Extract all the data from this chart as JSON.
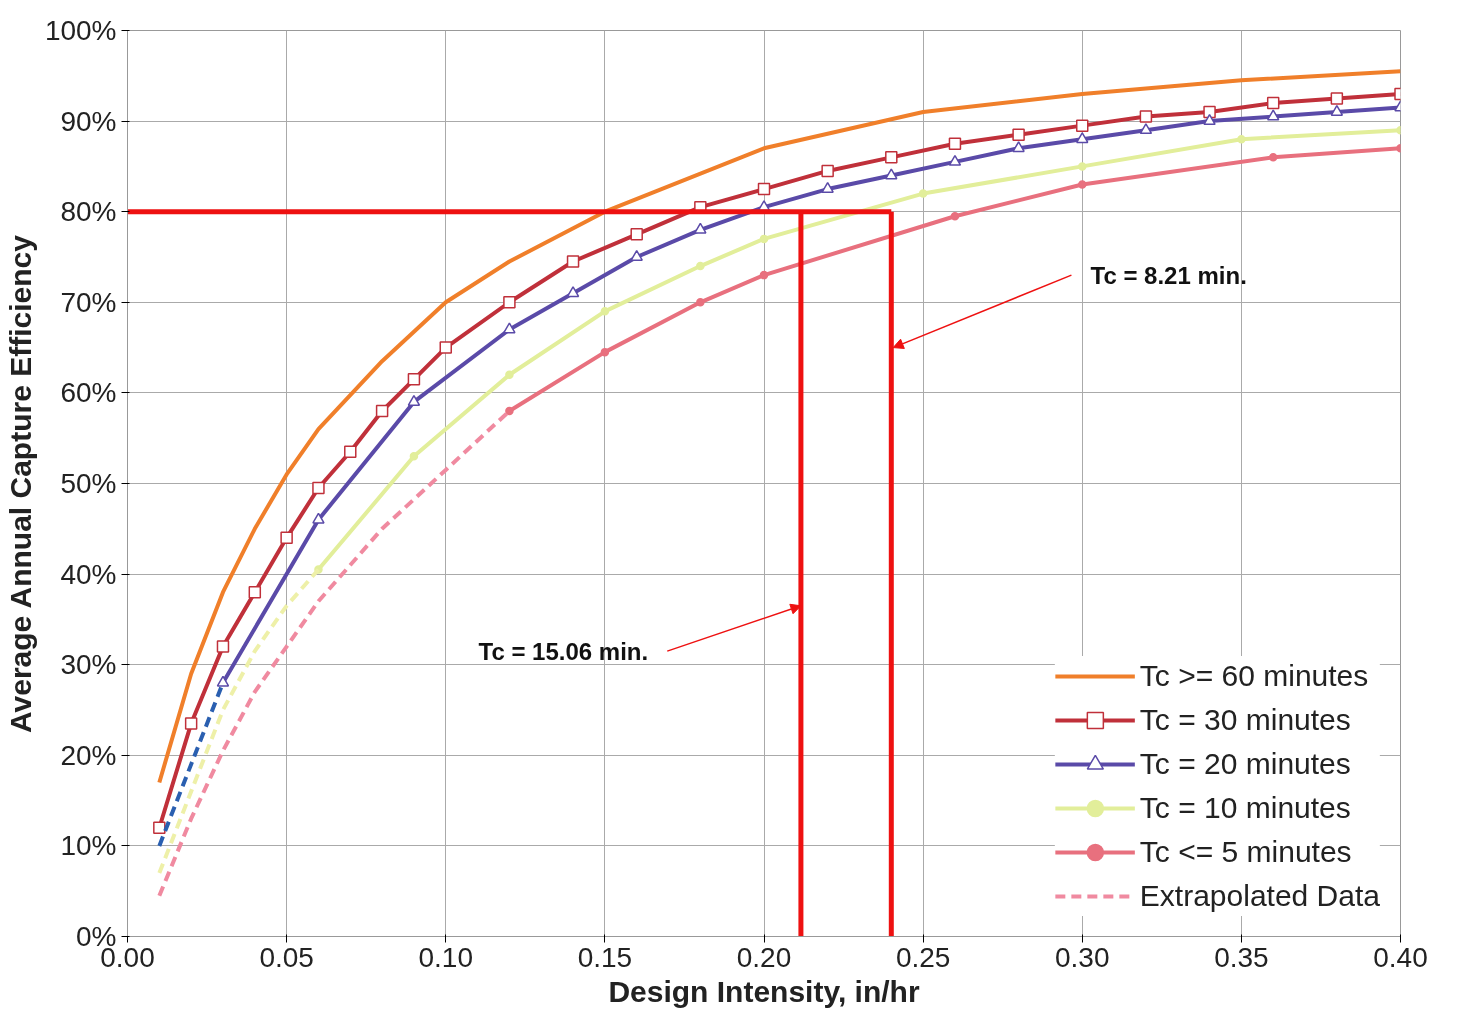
{
  "chart_data": {
    "type": "line",
    "xlabel": "Design Intensity, in/hr",
    "ylabel": "Average Annual Capture Efficiency",
    "xlim": [
      0,
      0.4
    ],
    "ylim": [
      0,
      100
    ],
    "xticks": [
      {
        "value": 0,
        "label": "0.00"
      },
      {
        "value": 0.05,
        "label": "0.05"
      },
      {
        "value": 0.1,
        "label": "0.10"
      },
      {
        "value": 0.15,
        "label": "0.15"
      },
      {
        "value": 0.2,
        "label": "0.20"
      },
      {
        "value": 0.25,
        "label": "0.25"
      },
      {
        "value": 0.3,
        "label": "0.30"
      },
      {
        "value": 0.35,
        "label": "0.35"
      },
      {
        "value": 0.4,
        "label": "0.40"
      }
    ],
    "yticks": [
      {
        "value": 0,
        "label": "0%"
      },
      {
        "value": 10,
        "label": "10%"
      },
      {
        "value": 20,
        "label": "20%"
      },
      {
        "value": 30,
        "label": "30%"
      },
      {
        "value": 40,
        "label": "40%"
      },
      {
        "value": 50,
        "label": "50%"
      },
      {
        "value": 60,
        "label": "60%"
      },
      {
        "value": 70,
        "label": "70%"
      },
      {
        "value": 80,
        "label": "80%"
      },
      {
        "value": 90,
        "label": "90%"
      },
      {
        "value": 100,
        "label": "100%"
      }
    ],
    "grid": true,
    "legend": "bottom right",
    "series": [
      {
        "name": "Tc >= 60 minutes",
        "color": "#f07f2a",
        "marker": "none",
        "line_style": "solid",
        "x": [
          0.01,
          0.02,
          0.03,
          0.04,
          0.05,
          0.06,
          0.08,
          0.1,
          0.12,
          0.15,
          0.2,
          0.25,
          0.3,
          0.35,
          0.4
        ],
        "values": [
          17,
          29,
          38,
          45,
          51,
          56,
          63.5,
          70,
          74.5,
          80,
          87,
          91,
          93,
          94.5,
          95.5
        ]
      },
      {
        "name": "Tc = 30 minutes",
        "color": "#c0303a",
        "marker": "square",
        "line_style": "solid",
        "x": [
          0.01,
          0.02,
          0.03,
          0.04,
          0.05,
          0.06,
          0.07,
          0.08,
          0.09,
          0.1,
          0.12,
          0.14,
          0.16,
          0.18,
          0.2,
          0.22,
          0.24,
          0.26,
          0.28,
          0.3,
          0.32,
          0.34,
          0.36,
          0.38,
          0.4
        ],
        "values": [
          12,
          23.5,
          32,
          38,
          44,
          49.5,
          53.5,
          58,
          61.5,
          65,
          70,
          74.5,
          77.5,
          80.5,
          82.5,
          84.5,
          86,
          87.5,
          88.5,
          89.5,
          90.5,
          91,
          92,
          92.5,
          93
        ]
      },
      {
        "name": "Tc = 20 minutes",
        "color": "#5a4aa8",
        "marker": "triangle",
        "line_style": "solid",
        "x": [
          0.03,
          0.06,
          0.09,
          0.12,
          0.14,
          0.16,
          0.18,
          0.2,
          0.22,
          0.24,
          0.26,
          0.28,
          0.3,
          0.32,
          0.34,
          0.36,
          0.38,
          0.4
        ],
        "values": [
          28,
          46,
          59,
          67,
          71,
          75,
          78,
          80.5,
          82.5,
          84,
          85.5,
          87,
          88,
          89,
          90,
          90.5,
          91,
          91.5
        ]
      },
      {
        "name": "Tc = 10 minutes",
        "color": "#e2ee9a",
        "marker": "circle",
        "line_style": "solid",
        "x": [
          0.06,
          0.09,
          0.12,
          0.15,
          0.18,
          0.2,
          0.25,
          0.3,
          0.35,
          0.4
        ],
        "values": [
          40.5,
          53,
          62,
          69,
          74,
          77,
          82,
          85,
          88,
          89
        ]
      },
      {
        "name": "Tc <= 5 minutes",
        "color": "#e8707e",
        "marker": "circle",
        "line_style": "solid",
        "x": [
          0.12,
          0.15,
          0.18,
          0.2,
          0.26,
          0.3,
          0.36,
          0.4
        ],
        "values": [
          58,
          64.5,
          70,
          73,
          79.5,
          83,
          86,
          87
        ]
      },
      {
        "name": "Extrapolated Data",
        "color": "#f08aa0",
        "marker": "none",
        "line_style": "dashed",
        "x": [
          0.01,
          0.02,
          0.03,
          0.04,
          0.05,
          0.06,
          0.08,
          0.1,
          0.12
        ],
        "values": [
          4.5,
          13,
          20.5,
          27,
          32,
          37,
          45,
          51.5,
          58
        ]
      },
      {
        "color": "#2a5fb0",
        "marker": "none",
        "line_style": "dashed",
        "x": [
          0.01,
          0.02,
          0.03
        ],
        "values": [
          10,
          19,
          28
        ]
      },
      {
        "color": "#eef0a8",
        "marker": "none",
        "line_style": "dashed",
        "x": [
          0.01,
          0.02,
          0.03,
          0.04,
          0.05,
          0.06
        ],
        "values": [
          7,
          16,
          25,
          31.5,
          36.5,
          40.5
        ]
      },
      {
        "color": "#ee1111",
        "marker": "none",
        "line_style": "solid",
        "x": [
          0,
          0.24
        ],
        "values": [
          80,
          80
        ]
      },
      {
        "color": "#ee1111",
        "marker": "none",
        "line_style": "solid",
        "x": [
          0.2116,
          0.2116
        ],
        "values": [
          0,
          80
        ]
      },
      {
        "color": "#ee1111",
        "marker": "none",
        "line_style": "solid",
        "x": [
          0.24,
          0.24
        ],
        "values": [
          0,
          80
        ]
      }
    ],
    "annotations": [
      {
        "text": "Tc = 15.06 min.",
        "x": 0.2116,
        "y": 36.5
      },
      {
        "text": "Tc = 8.21 min.",
        "x": 0.2406,
        "y": 65
      }
    ]
  }
}
